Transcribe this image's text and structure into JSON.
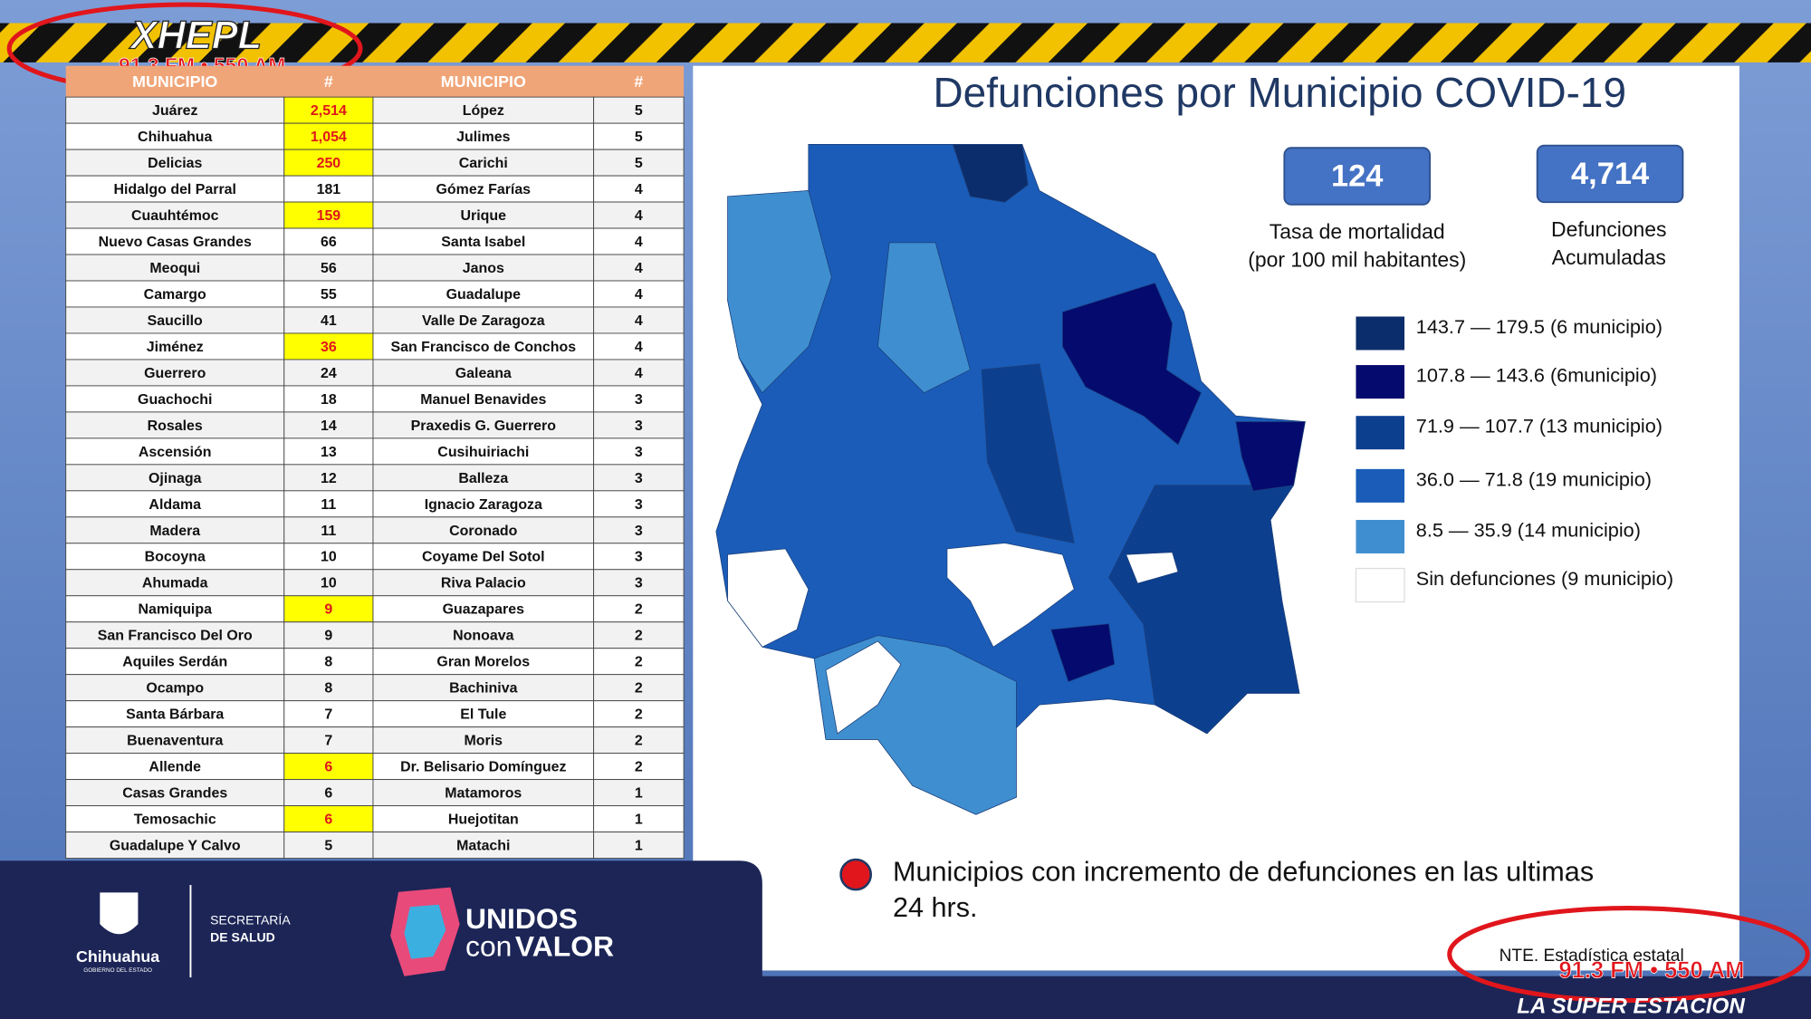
{
  "header": {
    "title": "Defunciones por Municipio COVID-19"
  },
  "table": {
    "columns": [
      "MUNICIPIO",
      "#",
      "MUNICIPIO",
      "#"
    ],
    "left": [
      {
        "name": "Juárez",
        "count": "2,514",
        "highlight": true
      },
      {
        "name": "Chihuahua",
        "count": "1,054",
        "highlight": true
      },
      {
        "name": "Delicias",
        "count": "250",
        "highlight": true
      },
      {
        "name": "Hidalgo del Parral",
        "count": "181",
        "highlight": false
      },
      {
        "name": "Cuauhtémoc",
        "count": "159",
        "highlight": true
      },
      {
        "name": "Nuevo Casas Grandes",
        "count": "66",
        "highlight": false
      },
      {
        "name": "Meoqui",
        "count": "56",
        "highlight": false
      },
      {
        "name": "Camargo",
        "count": "55",
        "highlight": false
      },
      {
        "name": "Saucillo",
        "count": "41",
        "highlight": false
      },
      {
        "name": "Jiménez",
        "count": "36",
        "highlight": true
      },
      {
        "name": "Guerrero",
        "count": "24",
        "highlight": false
      },
      {
        "name": "Guachochi",
        "count": "18",
        "highlight": false
      },
      {
        "name": "Rosales",
        "count": "14",
        "highlight": false
      },
      {
        "name": "Ascensión",
        "count": "13",
        "highlight": false
      },
      {
        "name": "Ojinaga",
        "count": "12",
        "highlight": false
      },
      {
        "name": "Aldama",
        "count": "11",
        "highlight": false
      },
      {
        "name": "Madera",
        "count": "11",
        "highlight": false
      },
      {
        "name": "Bocoyna",
        "count": "10",
        "highlight": false
      },
      {
        "name": "Ahumada",
        "count": "10",
        "highlight": false
      },
      {
        "name": "Namiquipa",
        "count": "9",
        "highlight": true
      },
      {
        "name": "San Francisco Del Oro",
        "count": "9",
        "highlight": false
      },
      {
        "name": "Aquiles Serdán",
        "count": "8",
        "highlight": false
      },
      {
        "name": "Ocampo",
        "count": "8",
        "highlight": false
      },
      {
        "name": "Santa Bárbara",
        "count": "7",
        "highlight": false
      },
      {
        "name": "Buenaventura",
        "count": "7",
        "highlight": false
      },
      {
        "name": "Allende",
        "count": "6",
        "highlight": true
      },
      {
        "name": "Casas Grandes",
        "count": "6",
        "highlight": false
      },
      {
        "name": "Temosachic",
        "count": "6",
        "highlight": true
      },
      {
        "name": "Guadalupe Y Calvo",
        "count": "5",
        "highlight": false
      }
    ],
    "right": [
      {
        "name": "López",
        "count": "5"
      },
      {
        "name": "Julimes",
        "count": "5"
      },
      {
        "name": "Carichi",
        "count": "5"
      },
      {
        "name": "Gómez Farías",
        "count": "4"
      },
      {
        "name": "Urique",
        "count": "4"
      },
      {
        "name": "Santa Isabel",
        "count": "4"
      },
      {
        "name": "Janos",
        "count": "4"
      },
      {
        "name": "Guadalupe",
        "count": "4"
      },
      {
        "name": "Valle De Zaragoza",
        "count": "4"
      },
      {
        "name": "San Francisco de Conchos",
        "count": "4"
      },
      {
        "name": "Galeana",
        "count": "4"
      },
      {
        "name": "Manuel Benavides",
        "count": "3"
      },
      {
        "name": "Praxedis G. Guerrero",
        "count": "3"
      },
      {
        "name": "Cusihuiriachi",
        "count": "3"
      },
      {
        "name": "Balleza",
        "count": "3"
      },
      {
        "name": "Ignacio Zaragoza",
        "count": "3"
      },
      {
        "name": "Coronado",
        "count": "3"
      },
      {
        "name": "Coyame Del Sotol",
        "count": "3"
      },
      {
        "name": "Riva Palacio",
        "count": "3"
      },
      {
        "name": "Guazapares",
        "count": "2"
      },
      {
        "name": "Nonoava",
        "count": "2"
      },
      {
        "name": "Gran Morelos",
        "count": "2"
      },
      {
        "name": "Bachiniva",
        "count": "2"
      },
      {
        "name": "El Tule",
        "count": "2"
      },
      {
        "name": "Moris",
        "count": "2"
      },
      {
        "name": "Dr. Belisario Domínguez",
        "count": "2"
      },
      {
        "name": "Matamoros",
        "count": "1"
      },
      {
        "name": "Huejotitan",
        "count": "1"
      },
      {
        "name": "Matachi",
        "count": "1"
      }
    ]
  },
  "stats": [
    {
      "value": "124",
      "label": [
        "Tasa de mortalidad",
        "(por 100 mil habitantes)"
      ]
    },
    {
      "value": "4,714",
      "label": [
        "Defunciones",
        "Acumuladas"
      ]
    }
  ],
  "legend": [
    {
      "label": "143.7 — 179.5 (6 municipio)",
      "color": "#0c2d6b"
    },
    {
      "label": "107.8 — 143.6 (6municipio)",
      "color": "#050a6e"
    },
    {
      "label": "71.9 — 107.7 (13 municipio)",
      "color": "#0d3f8f"
    },
    {
      "label": "36.0 — 71.8 (19 municipio)",
      "color": "#1a5cb8"
    },
    {
      "label": "8.5 — 35.9 (14 municipio)",
      "color": "#3f8fd0"
    },
    {
      "label": "Sin defunciones (9 municipio)",
      "color": "#ffffff"
    }
  ],
  "note": {
    "lines": [
      "Municipios con incremento de defunciones en las ultimas",
      "24 hrs."
    ]
  },
  "source": "NTE. Estadística estatal",
  "footer": {
    "state": "Chihuahua",
    "state_sub": "GOBIERNO DEL ESTADO",
    "dept": [
      "SECRETARÍA",
      "DE SALUD"
    ],
    "slogan": [
      "UNIDOS",
      "con",
      "VALOR"
    ]
  },
  "watermark": {
    "station": "XHEPL",
    "freq": "91.3 FM • 550 AM",
    "tagline": "LA SUPER ESTACION"
  }
}
